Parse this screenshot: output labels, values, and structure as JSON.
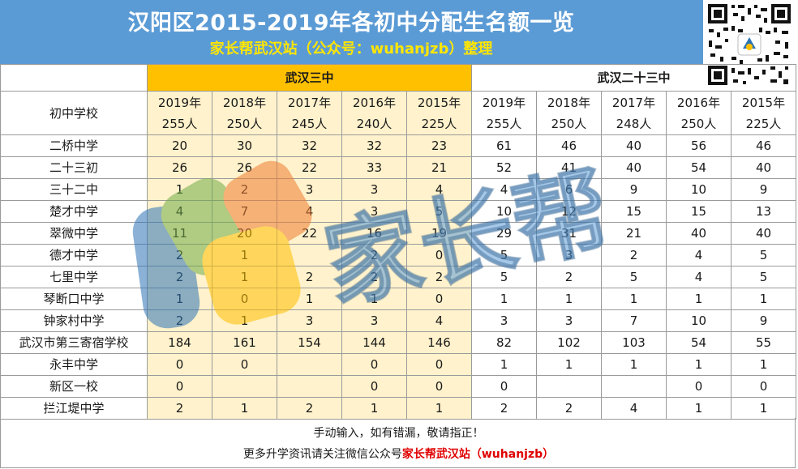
{
  "header": {
    "title": "汉阳区2015-2019年各初中分配生名额一览",
    "subtitle": "家长帮武汉站（公众号：wuhanjzb）整理"
  },
  "table": {
    "school_col_label": "初中学校",
    "group_a": "武汉三中",
    "group_b": "武汉二十三中",
    "years_a": [
      {
        "year": "2019年",
        "quota": "255人"
      },
      {
        "year": "2018年",
        "quota": "250人"
      },
      {
        "year": "2017年",
        "quota": "245人"
      },
      {
        "year": "2016年",
        "quota": "240人"
      },
      {
        "year": "2015年",
        "quota": "225人"
      }
    ],
    "years_b": [
      {
        "year": "2019年",
        "quota": "255人"
      },
      {
        "year": "2018年",
        "quota": "250人"
      },
      {
        "year": "2017年",
        "quota": "248人"
      },
      {
        "year": "2016年",
        "quota": "250人"
      },
      {
        "year": "2015年",
        "quota": "225人"
      }
    ],
    "rows": [
      {
        "school": "二桥中学",
        "a": [
          "20",
          "30",
          "32",
          "32",
          "23"
        ],
        "b": [
          "61",
          "46",
          "40",
          "56",
          "46"
        ]
      },
      {
        "school": "二十三初",
        "a": [
          "26",
          "26",
          "22",
          "33",
          "21"
        ],
        "b": [
          "52",
          "41",
          "40",
          "54",
          "40"
        ]
      },
      {
        "school": "三十二中",
        "a": [
          "1",
          "2",
          "3",
          "3",
          "4"
        ],
        "b": [
          "4",
          "6",
          "9",
          "10",
          "9"
        ]
      },
      {
        "school": "楚才中学",
        "a": [
          "4",
          "7",
          "4",
          "3",
          "5"
        ],
        "b": [
          "10",
          "12",
          "15",
          "15",
          "13"
        ]
      },
      {
        "school": "翠微中学",
        "a": [
          "11",
          "20",
          "22",
          "16",
          "19"
        ],
        "b": [
          "29",
          "31",
          "21",
          "40",
          "40"
        ]
      },
      {
        "school": "德才中学",
        "a": [
          "2",
          "1",
          "",
          "2",
          "0"
        ],
        "b": [
          "5",
          "3",
          "2",
          "4",
          "5"
        ]
      },
      {
        "school": "七里中学",
        "a": [
          "2",
          "1",
          "2",
          "2",
          "2"
        ],
        "b": [
          "5",
          "2",
          "5",
          "4",
          "5"
        ]
      },
      {
        "school": "琴断口中学",
        "a": [
          "1",
          "0",
          "1",
          "1",
          "0"
        ],
        "b": [
          "1",
          "1",
          "1",
          "1",
          "1"
        ]
      },
      {
        "school": "钟家村中学",
        "a": [
          "2",
          "1",
          "3",
          "3",
          "4"
        ],
        "b": [
          "3",
          "3",
          "7",
          "10",
          "9"
        ]
      },
      {
        "school": "武汉市第三寄宿学校",
        "a": [
          "184",
          "161",
          "154",
          "144",
          "146"
        ],
        "b": [
          "82",
          "102",
          "103",
          "54",
          "55"
        ]
      },
      {
        "school": "永丰中学",
        "a": [
          "0",
          "0",
          "",
          "0",
          "0"
        ],
        "b": [
          "1",
          "1",
          "1",
          "1",
          "1"
        ]
      },
      {
        "school": "新区一校",
        "a": [
          "0",
          "",
          "",
          "0",
          "0"
        ],
        "b": [
          "0",
          "",
          "",
          "0",
          "0"
        ]
      },
      {
        "school": "拦江堤中学",
        "a": [
          "2",
          "1",
          "2",
          "1",
          "1"
        ],
        "b": [
          "2",
          "2",
          "4",
          "1",
          "1"
        ]
      }
    ]
  },
  "footer": {
    "line1": "手动输入，如有错漏，敬请指正！",
    "line2_prefix": "更多升学资讯请关注微信公众号",
    "line2_highlight": "家长帮武汉站（wuhanjzb）"
  },
  "watermark": {
    "text": "家长帮",
    "colors": [
      "#2e75b6",
      "#70ad47",
      "#ed7d31",
      "#ffc000"
    ]
  }
}
